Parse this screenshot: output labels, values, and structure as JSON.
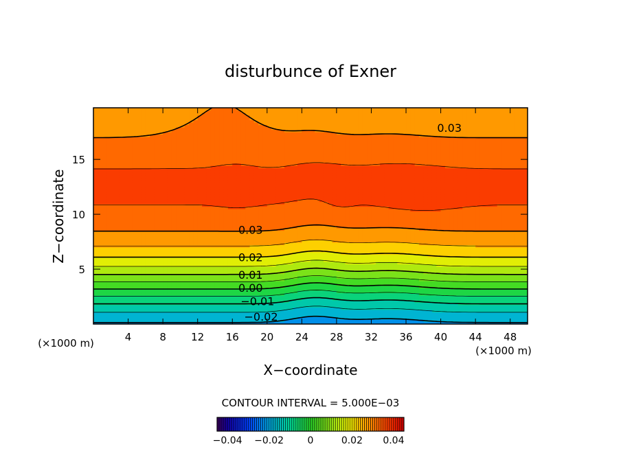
{
  "chart_data": {
    "type": "contour",
    "title": "disturbunce of Exner",
    "xlabel": "X−coordinate",
    "ylabel": "Z−coordinate",
    "x_unit_label": "(×1000 m)",
    "z_unit_label": "(×1000 m)",
    "xlim": [
      0,
      50
    ],
    "ylim": [
      0,
      19.7
    ],
    "x_ticks": [
      4,
      8,
      12,
      16,
      20,
      24,
      28,
      32,
      36,
      40,
      44,
      48
    ],
    "x_tick_labels": [
      "4",
      "8",
      "12",
      "16",
      "20",
      "24",
      "28",
      "32",
      "36",
      "40",
      "44",
      "48"
    ],
    "y_ticks": [
      5,
      10,
      15
    ],
    "y_tick_labels": [
      "5",
      "10",
      "15"
    ],
    "contour_interval_text": "CONTOUR INTERVAL = 5.000E−03",
    "contour_interval": 0.005,
    "value_range": [
      -0.045,
      0.045
    ],
    "contour_labels": [
      {
        "text": "0.03",
        "x": 41,
        "z": 17.9
      },
      {
        "text": "0.03",
        "x": 18.1,
        "z": 8.6
      },
      {
        "text": "0.02",
        "x": 18.1,
        "z": 6.1
      },
      {
        "text": "0.01",
        "x": 18.1,
        "z": 4.5
      },
      {
        "text": "0.00",
        "x": 18.1,
        "z": 3.3
      },
      {
        "text": "−0.01",
        "x": 18.9,
        "z": 2.1
      },
      {
        "text": "−0.02",
        "x": 19.3,
        "z": 0.7
      }
    ],
    "colorbar": {
      "ticks": [
        -0.04,
        -0.02,
        0,
        0.02,
        0.04
      ],
      "tick_labels": [
        "−0.04",
        "−0.02",
        "0",
        "0.02",
        "0.04"
      ]
    },
    "grid": false
  }
}
